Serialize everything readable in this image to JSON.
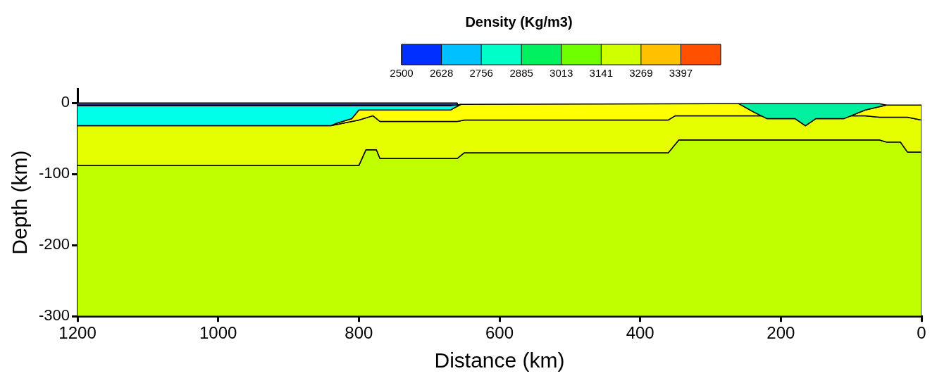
{
  "chart_data": {
    "type": "area",
    "xlabel": "Distance (km)",
    "ylabel": "Depth (km)",
    "clabel": "Density (Kg/m3)",
    "clim": [
      2500,
      3525
    ],
    "cticks": [
      2500,
      2628,
      2756,
      2885,
      3013,
      3141,
      3269,
      3397
    ],
    "xlim": [
      1200,
      0
    ],
    "xticks": [
      1200,
      1000,
      800,
      600,
      400,
      200,
      0
    ],
    "ylim": [
      -300,
      20
    ],
    "yticks": [
      0,
      -100,
      -200,
      -300
    ],
    "grid": false,
    "series": [
      {
        "color": "#c0ff00",
        "x": [
          1200,
          800,
          790,
          775,
          770,
          660,
          650,
          360,
          345,
          60,
          50,
          30,
          20,
          0,
          0,
          1200
        ],
        "values": [
          -88,
          -88,
          -66,
          -66,
          -78,
          -78,
          -70,
          -70,
          -52,
          -52,
          -55,
          -55,
          -69,
          -69,
          -300,
          -300
        ]
      },
      {
        "color": "#e6ff00",
        "x": [
          1200,
          840,
          820,
          800,
          780,
          770,
          660,
          650,
          360,
          350,
          250,
          80,
          60,
          20,
          0,
          0,
          20,
          30,
          50,
          60,
          345,
          360,
          650,
          660,
          770,
          775,
          790,
          800,
          1200
        ],
        "values": [
          -32,
          -32,
          -28,
          -24,
          -18,
          -26,
          -26,
          -24,
          -24,
          -18,
          -18,
          -18,
          -20,
          -20,
          -24,
          -69,
          -69,
          -55,
          -55,
          -52,
          -52,
          -70,
          -70,
          -78,
          -78,
          -66,
          -66,
          -88,
          -88
        ]
      },
      {
        "color": "#ffff00",
        "x": [
          840,
          830,
          810,
          800,
          670,
          655,
          260,
          240,
          220,
          180,
          165,
          150,
          110,
          80,
          50,
          0,
          0,
          20,
          60,
          80,
          250,
          350,
          360,
          650,
          660,
          770,
          780,
          800,
          820,
          840
        ],
        "values": [
          -32,
          -28,
          -22,
          -10,
          -10,
          -2,
          -1,
          -12,
          -22,
          -22,
          -32,
          -22,
          -22,
          -10,
          -3,
          -3,
          -24,
          -20,
          -20,
          -18,
          -18,
          -18,
          -24,
          -24,
          -26,
          -26,
          -18,
          -24,
          -28,
          -32
        ]
      },
      {
        "color": "#00ffe8",
        "x": [
          1200,
          670,
          655,
          670,
          800,
          810,
          830,
          840,
          1200
        ],
        "values": [
          -4,
          -4,
          -2,
          -10,
          -10,
          -22,
          -28,
          -32,
          -32
        ]
      },
      {
        "color": "#00f0a0",
        "x": [
          260,
          60,
          50,
          80,
          110,
          150,
          165,
          180,
          220,
          240,
          260
        ],
        "values": [
          -1,
          -1,
          -3,
          -10,
          -22,
          -22,
          -32,
          -22,
          -22,
          -12,
          -1
        ]
      },
      {
        "color": "#3050ff",
        "x": [
          1200,
          660,
          660,
          1200
        ],
        "values": [
          0,
          0,
          -3,
          -3
        ]
      }
    ]
  }
}
